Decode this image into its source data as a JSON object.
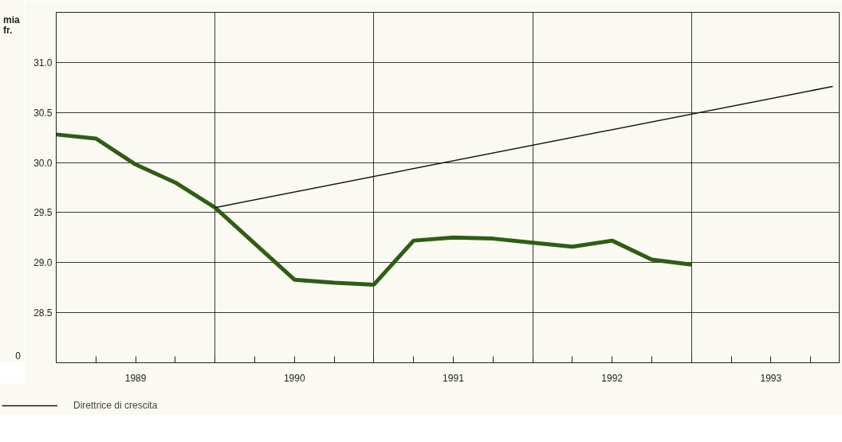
{
  "chart_data": {
    "type": "line",
    "ylabel": "mia fr.",
    "xlim": [
      1989.0,
      1993.93
    ],
    "ylim": [
      28.0,
      31.5
    ],
    "xticks": [
      {
        "value": 1989.0,
        "label": null
      },
      {
        "value": 1989.25,
        "label": null
      },
      {
        "value": 1989.5,
        "label": "1989"
      },
      {
        "value": 1989.75,
        "label": null
      },
      {
        "value": 1990.0,
        "label": null
      },
      {
        "value": 1990.25,
        "label": null
      },
      {
        "value": 1990.5,
        "label": "1990"
      },
      {
        "value": 1990.75,
        "label": null
      },
      {
        "value": 1991.0,
        "label": null
      },
      {
        "value": 1991.25,
        "label": null
      },
      {
        "value": 1991.5,
        "label": "1991"
      },
      {
        "value": 1991.75,
        "label": null
      },
      {
        "value": 1992.0,
        "label": null
      },
      {
        "value": 1992.25,
        "label": null
      },
      {
        "value": 1992.5,
        "label": "1992"
      },
      {
        "value": 1992.75,
        "label": null
      },
      {
        "value": 1993.0,
        "label": null
      },
      {
        "value": 1993.25,
        "label": null
      },
      {
        "value": 1993.5,
        "label": "1993"
      },
      {
        "value": 1993.75,
        "label": null
      }
    ],
    "yticks": [
      {
        "value": 28.0,
        "label": null
      },
      28.5,
      {
        "value": 29.0,
        "label": "29.0"
      },
      29.5,
      {
        "value": 30.0,
        "label": "30.0"
      },
      30.5,
      {
        "value": 31.0,
        "label": "31.0"
      },
      {
        "value": 31.5,
        "label": null
      }
    ],
    "annotations": [
      "0"
    ],
    "grid": true,
    "legend": "bottom left",
    "marker": "none",
    "series": [
      {
        "color": "#2e5e14",
        "x": [
          1989.0,
          1989.25,
          1989.5,
          1989.75,
          1990.0,
          1990.25,
          1990.5,
          1990.75,
          1991.0,
          1991.25,
          1991.5,
          1991.75,
          1992.0,
          1992.25,
          1992.5,
          1992.75,
          1993.0
        ],
        "values": [
          30.28,
          30.24,
          29.98,
          29.8,
          29.55,
          29.19,
          28.83,
          28.8,
          28.78,
          29.22,
          29.25,
          29.24,
          29.2,
          29.16,
          29.22,
          29.03,
          28.98
        ]
      },
      {
        "name": "Direttrice di crescita",
        "color": "#1a1a1a",
        "x": [
          1990.0,
          1993.89
        ],
        "values": [
          29.55,
          30.76
        ]
      }
    ]
  }
}
